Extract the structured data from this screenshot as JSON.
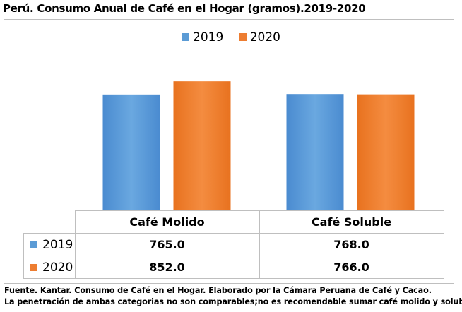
{
  "title": "Perú. Consumo Anual de Café en el Hogar (gramos).2019-2020",
  "colors": {
    "s2019": "#5b9bd5",
    "s2020": "#ed7d31"
  },
  "chart_data": {
    "type": "bar",
    "categories": [
      "Café Molido",
      "Café Soluble"
    ],
    "series": [
      {
        "name": "2019",
        "values": [
          765.0,
          768.0
        ]
      },
      {
        "name": "2020",
        "values": [
          852.0,
          766.0
        ]
      }
    ],
    "ylim": [
      0,
      1000
    ],
    "legend": "top-center",
    "grid": false,
    "data_table": true,
    "value_labels": {
      "2019": [
        "765.0",
        "768.0"
      ],
      "2020": [
        "852.0",
        "766.0"
      ]
    }
  },
  "footnotes": [
    "Fuente. Kantar. Consumo de Café en el Hogar. Elaborado por la Cámara Peruana de Café y Cacao.",
    "La penetración de ambas categorias no son comparables;no es recomendable sumar café molido y soluble."
  ]
}
